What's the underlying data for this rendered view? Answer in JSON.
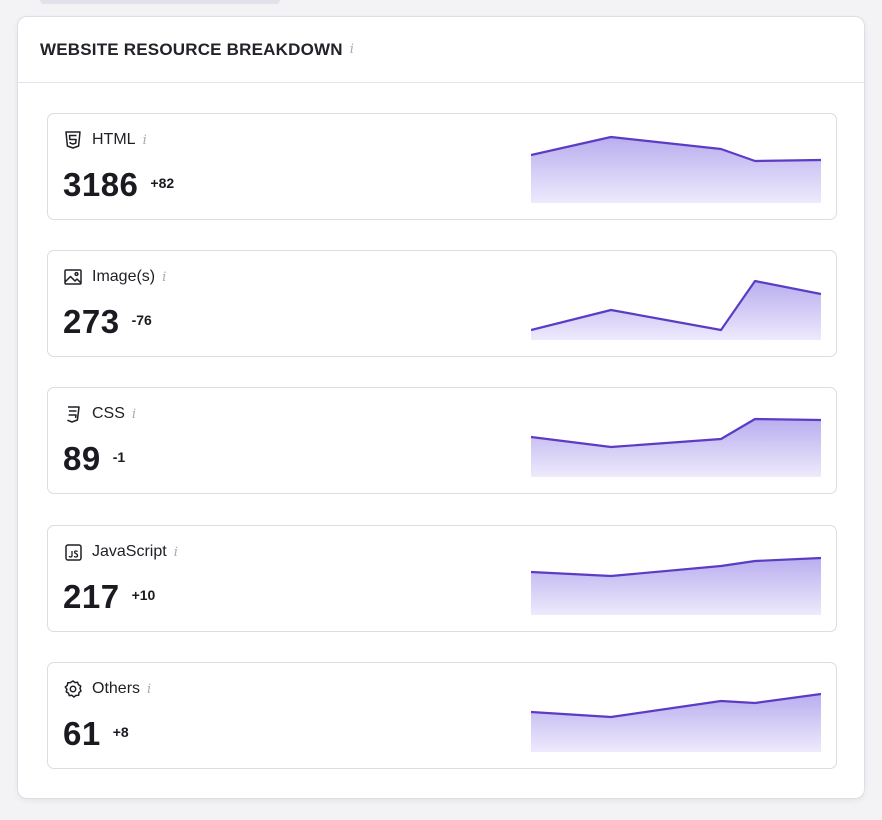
{
  "panel": {
    "title": "WEBSITE RESOURCE BREAKDOWN",
    "info": "i"
  },
  "colors": {
    "accent_line": "#5b3cc4",
    "accent_fill_top": "#b9aeef",
    "accent_fill_bottom": "#eeeafc"
  },
  "resources": [
    {
      "label": "HTML",
      "icon": "html5-icon",
      "value": "3186",
      "delta": "+82",
      "info": "i",
      "trend": [
        48,
        66,
        54,
        42,
        43
      ]
    },
    {
      "label": "Image(s)",
      "icon": "image-icon",
      "value": "273",
      "delta": "-76",
      "info": "i",
      "trend": [
        10,
        30,
        10,
        59,
        46
      ]
    },
    {
      "label": "CSS",
      "icon": "css3-icon",
      "value": "89",
      "delta": "-1",
      "info": "i",
      "trend": [
        40,
        30,
        38,
        58,
        57
      ]
    },
    {
      "label": "JavaScript",
      "icon": "javascript-icon",
      "value": "217",
      "delta": "+10",
      "info": "i",
      "trend": [
        43,
        39,
        49,
        54,
        57
      ]
    },
    {
      "label": "Others",
      "icon": "gear-icon",
      "value": "61",
      "delta": "+8",
      "info": "i",
      "trend": [
        40,
        35,
        51,
        49,
        58
      ]
    }
  ]
}
